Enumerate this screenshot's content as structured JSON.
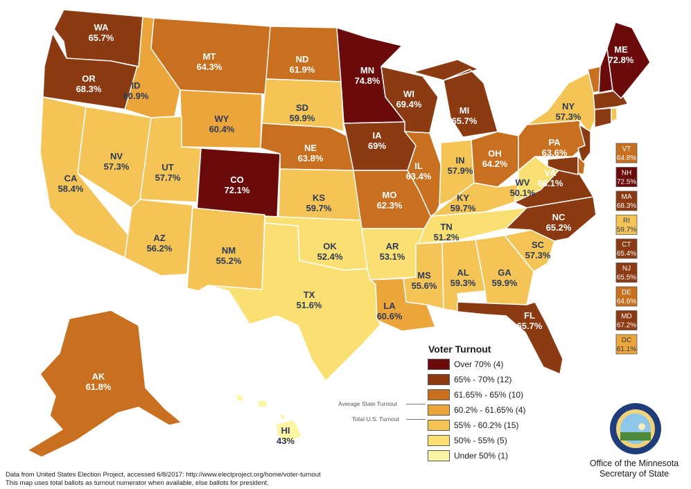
{
  "colors": {
    "over70": "#6b0a0a",
    "c65_70": "#8b3a12",
    "c6165_65": "#c8701f",
    "c602_6165": "#eca53a",
    "c55_602": "#f5c457",
    "c50_55": "#fadf73",
    "under50": "#fdf5a6"
  },
  "states": [
    {
      "abbr": "WA",
      "value": "65.7%",
      "cls": "c65_70"
    },
    {
      "abbr": "OR",
      "value": "68.3%",
      "cls": "c65_70"
    },
    {
      "abbr": "CA",
      "value": "58.4%",
      "cls": "c55_602"
    },
    {
      "abbr": "NV",
      "value": "57.3%",
      "cls": "c55_602"
    },
    {
      "abbr": "ID",
      "value": "60.9%",
      "cls": "c602_6165"
    },
    {
      "abbr": "MT",
      "value": "64.3%",
      "cls": "c6165_65"
    },
    {
      "abbr": "WY",
      "value": "60.4%",
      "cls": "c602_6165"
    },
    {
      "abbr": "UT",
      "value": "57.7%",
      "cls": "c55_602"
    },
    {
      "abbr": "AZ",
      "value": "56.2%",
      "cls": "c55_602"
    },
    {
      "abbr": "CO",
      "value": "72.1%",
      "cls": "over70"
    },
    {
      "abbr": "NM",
      "value": "55.2%",
      "cls": "c55_602"
    },
    {
      "abbr": "ND",
      "value": "61.9%",
      "cls": "c6165_65"
    },
    {
      "abbr": "SD",
      "value": "59.9%",
      "cls": "c55_602"
    },
    {
      "abbr": "NE",
      "value": "63.8%",
      "cls": "c6165_65"
    },
    {
      "abbr": "KS",
      "value": "59.7%",
      "cls": "c55_602"
    },
    {
      "abbr": "OK",
      "value": "52.4%",
      "cls": "c50_55"
    },
    {
      "abbr": "TX",
      "value": "51.6%",
      "cls": "c50_55"
    },
    {
      "abbr": "MN",
      "value": "74.8%",
      "cls": "over70"
    },
    {
      "abbr": "IA",
      "value": "69%",
      "cls": "c65_70"
    },
    {
      "abbr": "MO",
      "value": "62.3%",
      "cls": "c6165_65"
    },
    {
      "abbr": "AR",
      "value": "53.1%",
      "cls": "c50_55"
    },
    {
      "abbr": "LA",
      "value": "60.6%",
      "cls": "c602_6165"
    },
    {
      "abbr": "WI",
      "value": "69.4%",
      "cls": "c65_70"
    },
    {
      "abbr": "IL",
      "value": "63.4%",
      "cls": "c6165_65"
    },
    {
      "abbr": "MI",
      "value": "65.7%",
      "cls": "c65_70"
    },
    {
      "abbr": "IN",
      "value": "57.9%",
      "cls": "c55_602"
    },
    {
      "abbr": "OH",
      "value": "64.2%",
      "cls": "c6165_65"
    },
    {
      "abbr": "KY",
      "value": "59.7%",
      "cls": "c55_602"
    },
    {
      "abbr": "TN",
      "value": "51.2%",
      "cls": "c50_55"
    },
    {
      "abbr": "MS",
      "value": "55.6%",
      "cls": "c55_602"
    },
    {
      "abbr": "AL",
      "value": "59.3%",
      "cls": "c55_602"
    },
    {
      "abbr": "GA",
      "value": "59.9%",
      "cls": "c55_602"
    },
    {
      "abbr": "FL",
      "value": "65.7%",
      "cls": "c65_70"
    },
    {
      "abbr": "SC",
      "value": "57.3%",
      "cls": "c55_602"
    },
    {
      "abbr": "NC",
      "value": "65.2%",
      "cls": "c65_70"
    },
    {
      "abbr": "VA",
      "value": "66.1%",
      "cls": "c65_70"
    },
    {
      "abbr": "WV",
      "value": "50.1%",
      "cls": "c50_55"
    },
    {
      "abbr": "PA",
      "value": "63.6%",
      "cls": "c6165_65"
    },
    {
      "abbr": "NY",
      "value": "57.3%",
      "cls": "c55_602"
    },
    {
      "abbr": "ME",
      "value": "72.8%",
      "cls": "over70"
    },
    {
      "abbr": "AK",
      "value": "61.8%",
      "cls": "c6165_65"
    },
    {
      "abbr": "HI",
      "value": "43%",
      "cls": "under50"
    }
  ],
  "small_states": [
    {
      "abbr": "VT",
      "value": "64.8%",
      "cls": "c6165_65"
    },
    {
      "abbr": "NH",
      "value": "72.5%",
      "cls": "over70"
    },
    {
      "abbr": "MA",
      "value": "68.3%",
      "cls": "c65_70"
    },
    {
      "abbr": "RI",
      "value": "59.7%",
      "cls": "c55_602"
    },
    {
      "abbr": "CT",
      "value": "65.4%",
      "cls": "c65_70"
    },
    {
      "abbr": "NJ",
      "value": "65.5%",
      "cls": "c65_70"
    },
    {
      "abbr": "DE",
      "value": "64.6%",
      "cls": "c6165_65"
    },
    {
      "abbr": "MD",
      "value": "67.2%",
      "cls": "c65_70"
    },
    {
      "abbr": "DC",
      "value": "61.1%",
      "cls": "c602_6165"
    }
  ],
  "legend": {
    "title": "Voter Turnout",
    "items": [
      {
        "label": "Over 70% (4)",
        "cls": "over70"
      },
      {
        "label": "65% - 70% (12)",
        "cls": "c65_70"
      },
      {
        "label": "61.65% - 65% (10)",
        "cls": "c6165_65"
      },
      {
        "label": "60.2% - 61.65% (4)",
        "cls": "c602_6165"
      },
      {
        "label": "55% - 60.2% (15)",
        "cls": "c55_602"
      },
      {
        "label": "50% - 55% (5)",
        "cls": "c50_55"
      },
      {
        "label": "Under 50% (1)",
        "cls": "under50"
      }
    ],
    "average_note": "Average State Turnout",
    "total_note": "Total U.S. Turnout"
  },
  "source_line1": "Data from United States Election Project, accessed 6/8/2017: http://www.electproject.org/home/voter-turnout",
  "source_line2": "This map uses total ballots as turnout numerator when available, else ballots for president.",
  "office_line1": "Office of the Minnesota",
  "office_line2": "Secretary of State"
}
